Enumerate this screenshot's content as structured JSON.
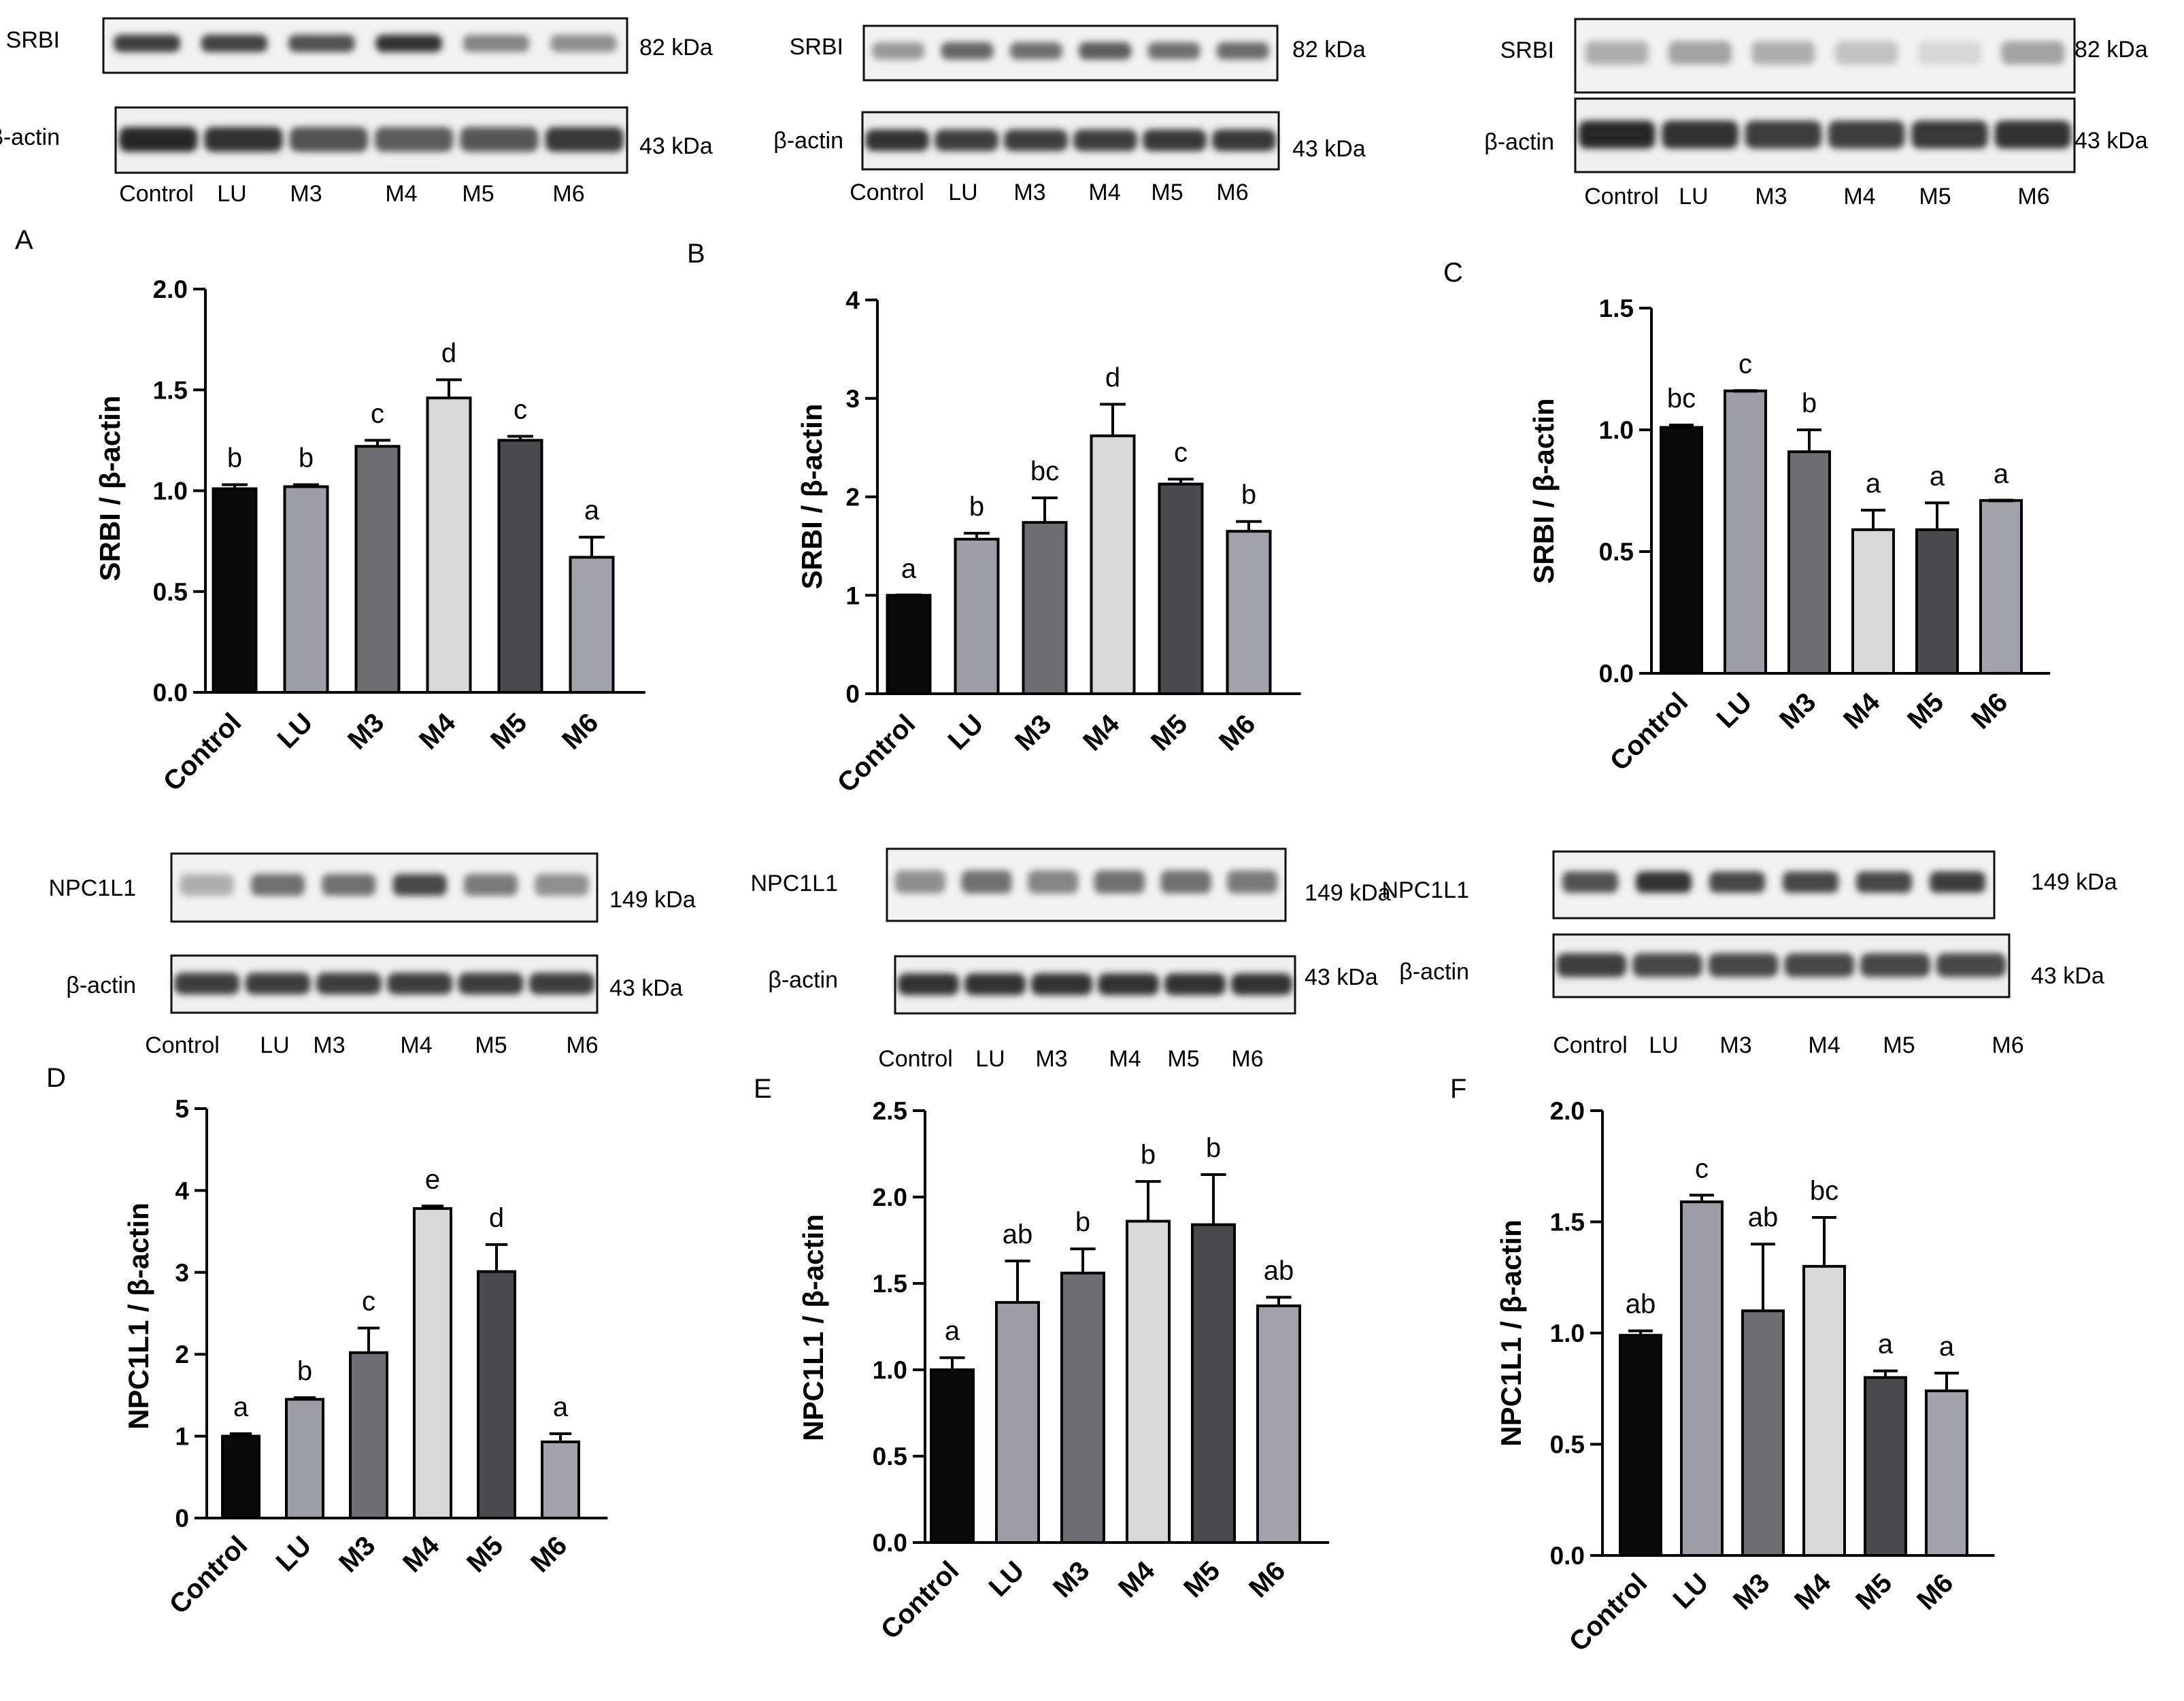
{
  "blot_lanes": [
    "Control",
    "LU",
    "M3",
    "M4",
    "M5",
    "M6"
  ],
  "blots": [
    {
      "target": "SRBI",
      "target_kda": "82 kDa",
      "control": "β-actin",
      "control_kda": "43 kDa",
      "target_intensity": [
        0.85,
        0.82,
        0.75,
        0.9,
        0.5,
        0.45
      ],
      "control_intensity": [
        0.95,
        0.9,
        0.75,
        0.7,
        0.72,
        0.88
      ]
    },
    {
      "target": "SRBI",
      "target_kda": "82 kDa",
      "control": "β-actin",
      "control_kda": "43 kDa",
      "target_intensity": [
        0.4,
        0.65,
        0.6,
        0.7,
        0.6,
        0.62
      ],
      "control_intensity": [
        0.9,
        0.85,
        0.85,
        0.85,
        0.88,
        0.88
      ]
    },
    {
      "target": "SRBI",
      "target_kda": "82 kDa",
      "control": "β-actin",
      "control_kda": "43 kDa",
      "target_intensity": [
        0.3,
        0.35,
        0.3,
        0.2,
        0.1,
        0.35
      ],
      "control_intensity": [
        0.95,
        0.9,
        0.85,
        0.85,
        0.88,
        0.9
      ]
    },
    {
      "target": "NPC1L1",
      "target_kda": "149 kDa",
      "control": "β-actin",
      "control_kda": "43 kDa",
      "target_intensity": [
        0.3,
        0.6,
        0.6,
        0.8,
        0.55,
        0.45
      ],
      "control_intensity": [
        0.85,
        0.85,
        0.85,
        0.85,
        0.85,
        0.85
      ]
    },
    {
      "target": "NPC1L1",
      "target_kda": "149 kDa",
      "control": "β-actin",
      "control_kda": "43 kDa",
      "target_intensity": [
        0.45,
        0.6,
        0.5,
        0.6,
        0.6,
        0.55
      ],
      "control_intensity": [
        0.9,
        0.9,
        0.9,
        0.9,
        0.9,
        0.9
      ]
    },
    {
      "target": "NPC1L1",
      "target_kda": "149 kDa",
      "control": "β-actin",
      "control_kda": "43 kDa",
      "target_intensity": [
        0.75,
        0.9,
        0.8,
        0.8,
        0.8,
        0.85
      ],
      "control_intensity": [
        0.85,
        0.8,
        0.8,
        0.8,
        0.8,
        0.8
      ]
    }
  ],
  "chart_data": [
    {
      "panel": "A",
      "type": "bar",
      "ylabel": "SRBI / β-actin",
      "categories": [
        "Control",
        "LU",
        "M3",
        "M4",
        "M5",
        "M6"
      ],
      "values": [
        1.01,
        1.02,
        1.22,
        1.46,
        1.25,
        0.67
      ],
      "errors": [
        0.02,
        0.01,
        0.03,
        0.09,
        0.02,
        0.1
      ],
      "letters": [
        "b",
        "b",
        "c",
        "d",
        "c",
        "a"
      ],
      "ylim": [
        0,
        2.0
      ],
      "ticks": [
        0,
        0.5,
        1.0,
        1.5,
        2.0
      ],
      "tick_labels": [
        "0.0",
        "0.5",
        "1.0",
        "1.5",
        "2.0"
      ]
    },
    {
      "panel": "B",
      "type": "bar",
      "ylabel": "SRBI / β-actin",
      "categories": [
        "Control",
        "LU",
        "M3",
        "M4",
        "M5",
        "M6"
      ],
      "values": [
        1.0,
        1.57,
        1.74,
        2.62,
        2.13,
        1.65
      ],
      "errors": [
        0.0,
        0.06,
        0.25,
        0.32,
        0.05,
        0.1
      ],
      "letters": [
        "a",
        "b",
        "bc",
        "d",
        "c",
        "b"
      ],
      "ylim": [
        0,
        4
      ],
      "ticks": [
        0,
        1,
        2,
        3,
        4
      ],
      "tick_labels": [
        "0",
        "1",
        "2",
        "3",
        "4"
      ]
    },
    {
      "panel": "C",
      "type": "bar",
      "ylabel": "SRBI / β-actin",
      "categories": [
        "Control",
        "LU",
        "M3",
        "M4",
        "M5",
        "M6"
      ],
      "values": [
        1.01,
        1.16,
        0.91,
        0.59,
        0.59,
        0.71
      ],
      "errors": [
        0.01,
        0.0,
        0.09,
        0.08,
        0.11,
        0.0
      ],
      "letters": [
        "bc",
        "c",
        "b",
        "a",
        "a",
        "a"
      ],
      "ylim": [
        0,
        1.5
      ],
      "ticks": [
        0,
        0.5,
        1.0,
        1.5
      ],
      "tick_labels": [
        "0.0",
        "0.5",
        "1.0",
        "1.5"
      ]
    },
    {
      "panel": "D",
      "type": "bar",
      "ylabel": "NPC1L1 / β-actin",
      "categories": [
        "Control",
        "LU",
        "M3",
        "M4",
        "M5",
        "M6"
      ],
      "values": [
        1.0,
        1.45,
        2.02,
        3.78,
        3.01,
        0.93
      ],
      "errors": [
        0.03,
        0.02,
        0.3,
        0.03,
        0.33,
        0.1
      ],
      "letters": [
        "a",
        "b",
        "c",
        "e",
        "d",
        "a"
      ],
      "ylim": [
        0,
        5
      ],
      "ticks": [
        0,
        1,
        2,
        3,
        4,
        5
      ],
      "tick_labels": [
        "0",
        "1",
        "2",
        "3",
        "4",
        "5"
      ]
    },
    {
      "panel": "E",
      "type": "bar",
      "ylabel": "NPC1L1 / β-actin",
      "categories": [
        "Control",
        "LU",
        "M3",
        "M4",
        "M5",
        "M6"
      ],
      "values": [
        1.0,
        1.39,
        1.56,
        1.86,
        1.84,
        1.37
      ],
      "errors": [
        0.07,
        0.24,
        0.14,
        0.23,
        0.29,
        0.05
      ],
      "letters": [
        "a",
        "ab",
        "b",
        "b",
        "b",
        "ab"
      ],
      "ylim": [
        0,
        2.5
      ],
      "ticks": [
        0,
        0.5,
        1.0,
        1.5,
        2.0,
        2.5
      ],
      "tick_labels": [
        "0.0",
        "0.5",
        "1.0",
        "1.5",
        "2.0",
        "2.5"
      ]
    },
    {
      "panel": "F",
      "type": "bar",
      "ylabel": "NPC1L1 / β-actin",
      "categories": [
        "Control",
        "LU",
        "M3",
        "M4",
        "M5",
        "M6"
      ],
      "values": [
        0.99,
        1.59,
        1.1,
        1.3,
        0.8,
        0.74
      ],
      "errors": [
        0.02,
        0.03,
        0.3,
        0.22,
        0.03,
        0.08
      ],
      "letters": [
        "ab",
        "c",
        "ab",
        "bc",
        "a",
        "a"
      ],
      "ylim": [
        0,
        2.0
      ],
      "ticks": [
        0,
        0.5,
        1.0,
        1.5,
        2.0
      ],
      "tick_labels": [
        "0.0",
        "0.5",
        "1.0",
        "1.5",
        "2.0"
      ]
    }
  ],
  "colors": {
    "bars": [
      "#0a0a0a",
      "#9d9da6",
      "#6e6e72",
      "#d8d8d8",
      "#4b4b4d",
      "#a2a2aa"
    ],
    "axis": "#000000"
  }
}
